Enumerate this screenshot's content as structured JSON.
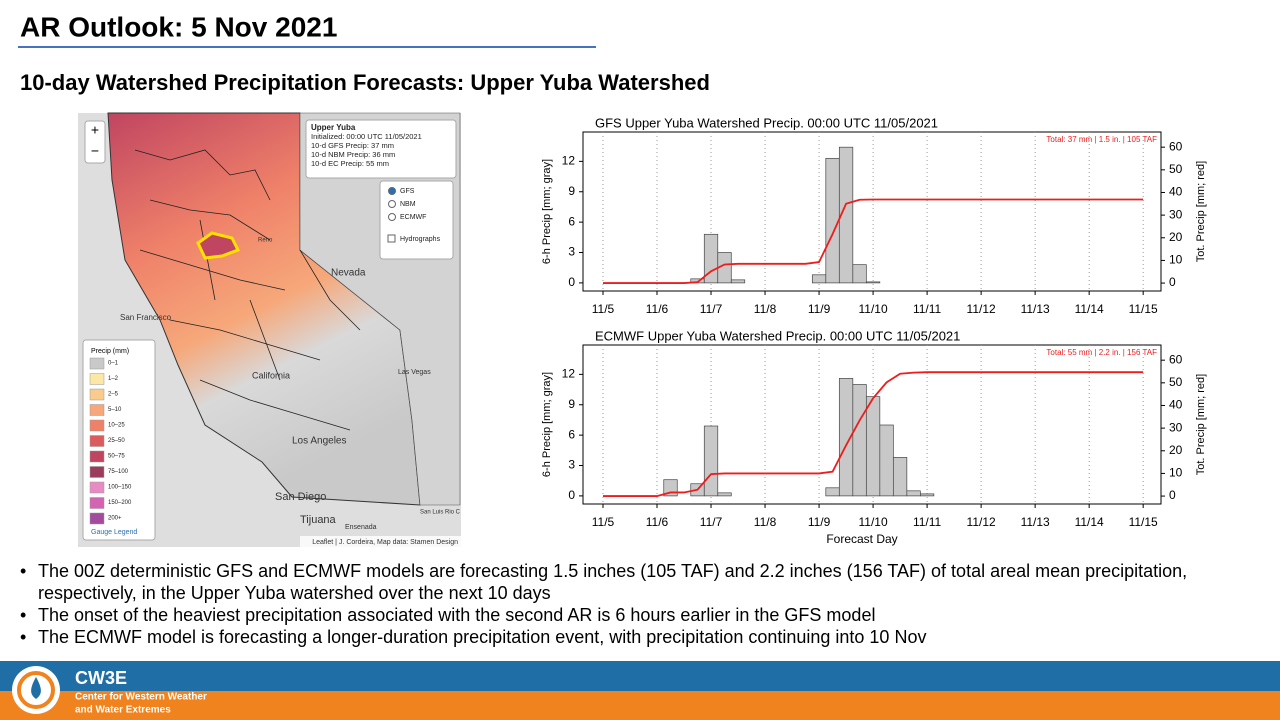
{
  "header": {
    "title": "AR Outlook: 5 Nov 2021",
    "subtitle": "10-day Watershed Precipitation Forecasts: Upper Yuba Watershed"
  },
  "map": {
    "zoom_in": "+",
    "zoom_out": "−",
    "popup": [
      "Upper Yuba",
      "Initialized: 00:00 UTC 11/05/2021",
      "10-d GFS Precip: 37 mm",
      "10-d NBM Precip: 36 mm",
      "10-d EC Precip: 55 mm"
    ],
    "models": [
      "GFS",
      "NBM",
      "ECMWF"
    ],
    "hydrographs": "Hydrographs",
    "places": [
      "Nevada",
      "Reno",
      "San Francisco",
      "California",
      "Las Vegas",
      "Los Angeles",
      "San Diego",
      "Tijuana",
      "Ensenada",
      "San Luis Rio C"
    ],
    "legend": {
      "title": "Precip (mm)",
      "link": "Gauge Legend",
      "entries": [
        {
          "label": "0–1",
          "color": "#c9c9c9"
        },
        {
          "label": "1–2",
          "color": "#fbe8a6"
        },
        {
          "label": "2–5",
          "color": "#f9cb8c"
        },
        {
          "label": "5–10",
          "color": "#f6a87a"
        },
        {
          "label": "10–25",
          "color": "#ef8169"
        },
        {
          "label": "25–50",
          "color": "#dc5b5f"
        },
        {
          "label": "50–75",
          "color": "#c04561"
        },
        {
          "label": "75–100",
          "color": "#9b3c5d"
        },
        {
          "label": "100–150",
          "color": "#e78cc2"
        },
        {
          "label": "150–200",
          "color": "#d463b2"
        },
        {
          "label": "200+",
          "color": "#a34b9f"
        }
      ]
    },
    "attribution": "Leaflet | J. Cordeira, Map data: Stamen Design"
  },
  "chart_data": [
    {
      "type": "combo",
      "title": "GFS Upper Yuba Watershed Precip. 00:00 UTC 11/05/2021",
      "annotation": "Total: 37 mm | 1.5 in. | 105 TAF",
      "y_label": "6-h Precip [mm; gray]",
      "y2_label": "Tot. Precip [mm; red]",
      "x": [
        0,
        0.25,
        0.5,
        0.75,
        1,
        1.25,
        1.5,
        1.75,
        2,
        2.25,
        2.5,
        2.75,
        3,
        3.25,
        3.5,
        3.75,
        4,
        4.25,
        4.5,
        4.75,
        5,
        5.25,
        5.5,
        5.75,
        6,
        6.25,
        6.5,
        6.75,
        7,
        7.25,
        7.5,
        7.75,
        8,
        8.25,
        8.5,
        8.75,
        9,
        9.25,
        9.5,
        9.75,
        10
      ],
      "series": [
        {
          "type": "bar",
          "color": "#c8c8c8",
          "values": [
            0,
            0,
            0,
            0,
            0,
            0,
            0,
            0.4,
            4.8,
            3.0,
            0.3,
            0,
            0,
            0,
            0,
            0,
            0.8,
            12.3,
            13.4,
            1.8,
            0.1,
            0,
            0,
            0,
            0,
            0,
            0,
            0,
            0,
            0,
            0,
            0,
            0,
            0,
            0,
            0,
            0,
            0,
            0,
            0,
            0
          ]
        },
        {
          "type": "line",
          "axis": "y2",
          "color": "#ee1c1c",
          "values": [
            0,
            0,
            0,
            0,
            0,
            0,
            0,
            0.4,
            5.2,
            8.2,
            8.5,
            8.5,
            8.5,
            8.5,
            8.5,
            8.5,
            9.3,
            21.6,
            35.0,
            36.8,
            36.9,
            36.9,
            36.9,
            36.9,
            36.9,
            36.9,
            36.9,
            36.9,
            36.9,
            36.9,
            36.9,
            36.9,
            36.9,
            36.9,
            36.9,
            36.9,
            36.9,
            36.9,
            36.9,
            36.9,
            36.9
          ]
        }
      ],
      "xlim": [
        -0.37,
        10.33
      ],
      "xticks": [
        {
          "value": 0,
          "label": "11/5"
        },
        {
          "value": 1,
          "label": "11/6"
        },
        {
          "value": 2,
          "label": "11/7"
        },
        {
          "value": 3,
          "label": "11/8"
        },
        {
          "value": 4,
          "label": "11/9"
        },
        {
          "value": 5,
          "label": "11/10"
        },
        {
          "value": 6,
          "label": "11/11"
        },
        {
          "value": 7,
          "label": "11/12"
        },
        {
          "value": 8,
          "label": "11/13"
        },
        {
          "value": 9,
          "label": "11/14"
        },
        {
          "value": 10,
          "label": "11/15"
        }
      ],
      "ylim": [
        -0.8,
        14.9
      ],
      "yticks": [
        0,
        3,
        6,
        9,
        12
      ],
      "y2lim": [
        -3.5,
        66.7
      ],
      "y2ticks": [
        0,
        10,
        20,
        30,
        40,
        50,
        60
      ],
      "grid": true
    },
    {
      "type": "combo",
      "title": "ECMWF Upper Yuba Watershed Precip. 00:00 UTC 11/05/2021",
      "annotation": "Total: 55 mm | 2.2 in. | 156 TAF",
      "y_label": "6-h Precip [mm; gray]",
      "y2_label": "Tot. Precip [mm; red]",
      "x_label": "Forecast Day",
      "x": [
        0,
        0.25,
        0.5,
        0.75,
        1,
        1.25,
        1.5,
        1.75,
        2,
        2.25,
        2.5,
        2.75,
        3,
        3.25,
        3.5,
        3.75,
        4,
        4.25,
        4.5,
        4.75,
        5,
        5.25,
        5.5,
        5.75,
        6,
        6.25,
        6.5,
        6.75,
        7,
        7.25,
        7.5,
        7.75,
        8,
        8.25,
        8.5,
        8.75,
        9,
        9.25,
        9.5,
        9.75,
        10
      ],
      "series": [
        {
          "type": "bar",
          "color": "#c8c8c8",
          "values": [
            0,
            0,
            0,
            0,
            0,
            1.6,
            0,
            1.2,
            6.9,
            0.3,
            0,
            0,
            0,
            0,
            0,
            0,
            0,
            0.8,
            11.6,
            11.0,
            9.8,
            7.0,
            3.8,
            0.5,
            0.2,
            0,
            0,
            0,
            0,
            0,
            0,
            0,
            0,
            0,
            0,
            0,
            0,
            0,
            0,
            0,
            0
          ]
        },
        {
          "type": "line",
          "axis": "y2",
          "color": "#ee1c1c",
          "values": [
            0,
            0,
            0,
            0,
            0,
            1.6,
            1.6,
            2.8,
            9.7,
            10.0,
            10.0,
            10.0,
            10.0,
            10.0,
            10.0,
            10.0,
            10.0,
            10.8,
            22.4,
            33.4,
            43.2,
            50.2,
            54.0,
            54.5,
            54.7,
            54.7,
            54.7,
            54.7,
            54.7,
            54.7,
            54.7,
            54.7,
            54.7,
            54.7,
            54.7,
            54.7,
            54.7,
            54.7,
            54.7,
            54.7,
            54.7
          ]
        }
      ],
      "xlim": [
        -0.37,
        10.33
      ],
      "xticks": [
        {
          "value": 0,
          "label": "11/5"
        },
        {
          "value": 1,
          "label": "11/6"
        },
        {
          "value": 2,
          "label": "11/7"
        },
        {
          "value": 3,
          "label": "11/8"
        },
        {
          "value": 4,
          "label": "11/9"
        },
        {
          "value": 5,
          "label": "11/10"
        },
        {
          "value": 6,
          "label": "11/11"
        },
        {
          "value": 7,
          "label": "11/12"
        },
        {
          "value": 8,
          "label": "11/13"
        },
        {
          "value": 9,
          "label": "11/14"
        },
        {
          "value": 10,
          "label": "11/15"
        }
      ],
      "ylim": [
        -0.8,
        14.9
      ],
      "yticks": [
        0,
        3,
        6,
        9,
        12
      ],
      "y2lim": [
        -3.5,
        66.7
      ],
      "y2ticks": [
        0,
        10,
        20,
        30,
        40,
        50,
        60
      ],
      "grid": true
    }
  ],
  "bullets": [
    "The 00Z deterministic GFS and ECMWF models are forecasting 1.5 inches (105 TAF) and 2.2 inches (156 TAF) of total areal mean precipitation, respectively, in the Upper Yuba watershed over the next 10 days",
    "The onset of the heaviest precipitation associated with the second AR is 6 hours earlier in the GFS model",
    "The ECMWF model is forecasting a longer-duration precipitation event, with precipitation continuing into 10 Nov"
  ],
  "footer": {
    "logo": "CW3E",
    "name_line1": "Center for Western Weather",
    "name_line2": "and Water Extremes"
  }
}
